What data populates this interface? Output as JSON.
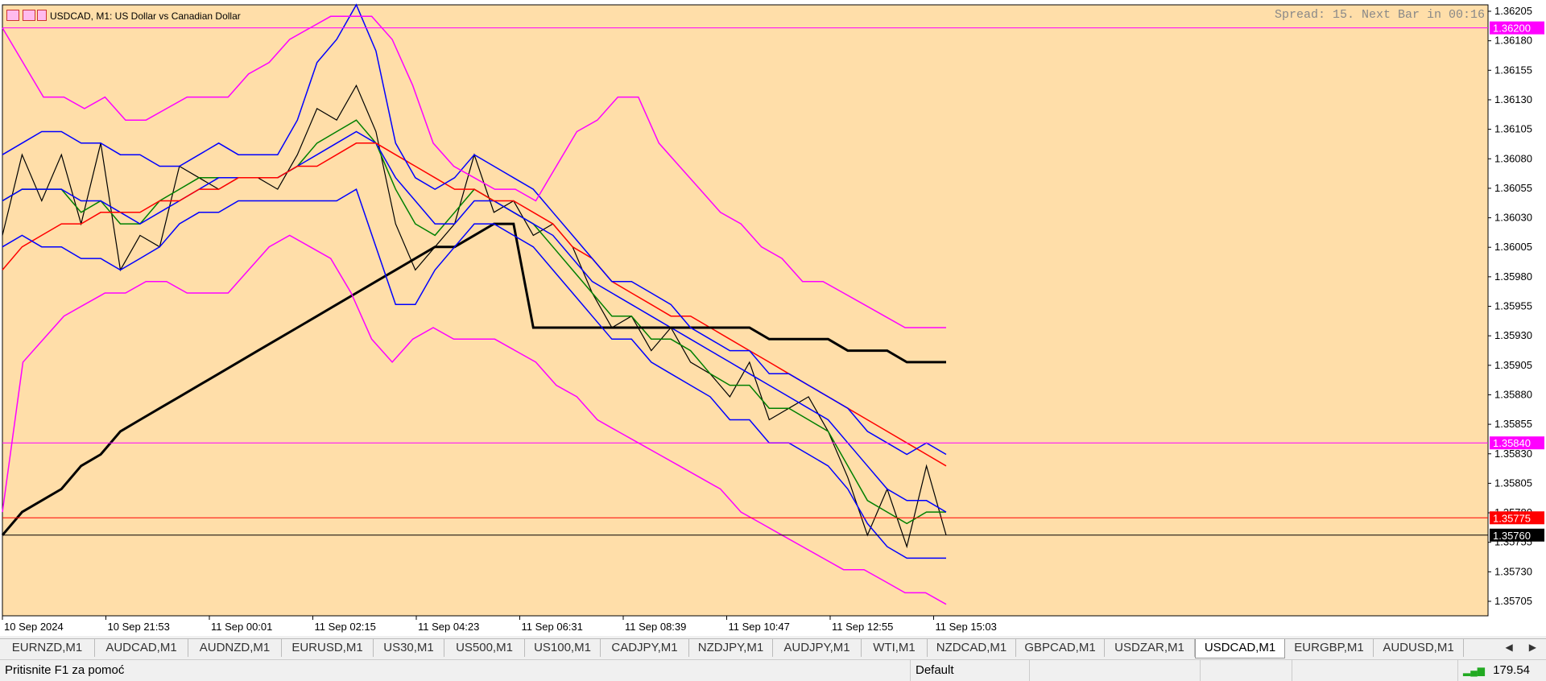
{
  "chart": {
    "title": "USDCAD, M1:  US Dollar vs Canadian Dollar",
    "spread_info": "Spread: 15. Next Bar in 00:16",
    "background": "#ffdea9",
    "y_ticks": [
      "1.36205",
      "1.36180",
      "1.36155",
      "1.36130",
      "1.36105",
      "1.36080",
      "1.36055",
      "1.36030",
      "1.36005",
      "1.35980",
      "1.35955",
      "1.35930",
      "1.35905",
      "1.35880",
      "1.35855",
      "1.35830",
      "1.35805",
      "1.35780",
      "1.35755",
      "1.35730",
      "1.35705"
    ],
    "x_ticks": [
      "10 Sep 2024",
      "10 Sep 21:53",
      "11 Sep 00:01",
      "11 Sep 02:15",
      "11 Sep 04:23",
      "11 Sep 06:31",
      "11 Sep 08:39",
      "11 Sep 10:47",
      "11 Sep 12:55",
      "11 Sep 15:03"
    ],
    "price_markers": [
      {
        "label": "1.36200",
        "value": 1.362,
        "color": "#ff00ff"
      },
      {
        "label": "1.35840",
        "value": 1.3584,
        "color": "#ff00ff"
      },
      {
        "label": "1.35775",
        "value": 1.35775,
        "color": "#ff0000"
      },
      {
        "label": "1.35760",
        "value": 1.3576,
        "color": "#000000"
      }
    ]
  },
  "chart_data": {
    "type": "line",
    "ylim": [
      1.3569,
      1.3622
    ],
    "series": [
      {
        "color": "#000000",
        "role": "price",
        "values": [
          1.3602,
          1.3609,
          1.3605,
          1.3609,
          1.3603,
          1.361,
          1.3599,
          1.3602,
          1.3601,
          1.3608,
          1.3607,
          1.3606,
          1.3607,
          1.3607,
          1.3606,
          1.3609,
          1.3613,
          1.3612,
          1.3615,
          1.3611,
          1.3603,
          1.3599,
          1.3601,
          1.3603,
          1.3609,
          1.3604,
          1.3605,
          1.3602,
          1.3603,
          1.3601,
          1.3597,
          1.3594,
          1.3595,
          1.3592,
          1.3594,
          1.3591,
          1.359,
          1.3588,
          1.3591,
          1.3586,
          1.3587,
          1.3588,
          1.3585,
          1.3581,
          1.3576,
          1.358,
          1.3575,
          1.3582,
          1.3576
        ]
      },
      {
        "color": "#008000",
        "role": "ma-fast",
        "values": [
          1.3605,
          1.3606,
          1.3606,
          1.3606,
          1.3604,
          1.3605,
          1.3603,
          1.3603,
          1.3605,
          1.3606,
          1.3607,
          1.3607,
          1.3607,
          1.3607,
          1.3607,
          1.3608,
          1.361,
          1.3611,
          1.3612,
          1.361,
          1.3606,
          1.3603,
          1.3602,
          1.3604,
          1.3606,
          1.3605,
          1.3604,
          1.3603,
          1.3601,
          1.3599,
          1.3597,
          1.3595,
          1.3595,
          1.3593,
          1.3593,
          1.3592,
          1.359,
          1.3589,
          1.3589,
          1.3587,
          1.3587,
          1.3586,
          1.3585,
          1.3582,
          1.3579,
          1.3578,
          1.3577,
          1.3578,
          1.3578
        ]
      },
      {
        "color": "#0000ff",
        "role": "ma-mid",
        "values": [
          1.3605,
          1.3606,
          1.3606,
          1.3606,
          1.3605,
          1.3605,
          1.3604,
          1.3603,
          1.3604,
          1.3605,
          1.3606,
          1.3607,
          1.3607,
          1.3607,
          1.3607,
          1.3608,
          1.3609,
          1.361,
          1.3611,
          1.361,
          1.3607,
          1.3605,
          1.3603,
          1.3603,
          1.3605,
          1.3605,
          1.3604,
          1.3603,
          1.3602,
          1.36,
          1.3598,
          1.3597,
          1.3596,
          1.3595,
          1.3594,
          1.3593,
          1.3592,
          1.3591,
          1.359,
          1.3589,
          1.3588,
          1.3587,
          1.3586,
          1.3584,
          1.3582,
          1.358,
          1.3579,
          1.3579,
          1.3578
        ]
      },
      {
        "color": "#ff0000",
        "role": "ma-slow",
        "values": [
          1.3599,
          1.3601,
          1.3602,
          1.3603,
          1.3603,
          1.3604,
          1.3604,
          1.3604,
          1.3605,
          1.3605,
          1.3606,
          1.3606,
          1.3607,
          1.3607,
          1.3607,
          1.3608,
          1.3608,
          1.3609,
          1.361,
          1.361,
          1.3609,
          1.3608,
          1.3607,
          1.3606,
          1.3606,
          1.3605,
          1.3605,
          1.3604,
          1.3603,
          1.3601,
          1.36,
          1.3598,
          1.3597,
          1.3596,
          1.3595,
          1.3595,
          1.3594,
          1.3593,
          1.3592,
          1.3591,
          1.359,
          1.3589,
          1.3588,
          1.3587,
          1.3586,
          1.3585,
          1.3584,
          1.3583,
          1.3582
        ]
      },
      {
        "color": "#000000",
        "role": "ma-long",
        "width": 3,
        "values": [
          1.3576,
          1.3578,
          1.3579,
          1.358,
          1.3582,
          1.3583,
          1.3585,
          1.3586,
          1.3587,
          1.3588,
          1.3589,
          1.359,
          1.3591,
          1.3592,
          1.3593,
          1.3594,
          1.3595,
          1.3596,
          1.3597,
          1.3598,
          1.3599,
          1.36,
          1.3601,
          1.3601,
          1.3602,
          1.3603,
          1.3603,
          1.3594,
          1.3594,
          1.3594,
          1.3594,
          1.3594,
          1.3594,
          1.3594,
          1.3594,
          1.3594,
          1.3594,
          1.3594,
          1.3594,
          1.3593,
          1.3593,
          1.3593,
          1.3593,
          1.3592,
          1.3592,
          1.3592,
          1.3591,
          1.3591,
          1.3591
        ]
      },
      {
        "color": "#0000ff",
        "role": "band-inner-upper",
        "values": [
          1.3609,
          1.361,
          1.3611,
          1.3611,
          1.361,
          1.361,
          1.3609,
          1.3609,
          1.3608,
          1.3608,
          1.3609,
          1.361,
          1.3609,
          1.3609,
          1.3609,
          1.3612,
          1.3617,
          1.3619,
          1.3622,
          1.3618,
          1.361,
          1.3607,
          1.3606,
          1.3607,
          1.3609,
          1.3608,
          1.3607,
          1.3606,
          1.3604,
          1.3602,
          1.36,
          1.3598,
          1.3598,
          1.3597,
          1.3596,
          1.3594,
          1.3593,
          1.3592,
          1.3592,
          1.359,
          1.359,
          1.3589,
          1.3588,
          1.3587,
          1.3585,
          1.3584,
          1.3583,
          1.3584,
          1.3583
        ]
      },
      {
        "color": "#0000ff",
        "role": "band-inner-lower",
        "values": [
          1.3601,
          1.3602,
          1.3601,
          1.3601,
          1.36,
          1.36,
          1.3599,
          1.36,
          1.3601,
          1.3603,
          1.3604,
          1.3604,
          1.3605,
          1.3605,
          1.3605,
          1.3605,
          1.3605,
          1.3605,
          1.3606,
          1.3601,
          1.3596,
          1.3596,
          1.3599,
          1.3601,
          1.3603,
          1.3603,
          1.3602,
          1.3601,
          1.3599,
          1.3597,
          1.3595,
          1.3593,
          1.3593,
          1.3591,
          1.359,
          1.3589,
          1.3588,
          1.3586,
          1.3586,
          1.3584,
          1.3584,
          1.3583,
          1.3582,
          1.358,
          1.3577,
          1.3575,
          1.3574,
          1.3574,
          1.3574
        ]
      },
      {
        "color": "#ff00ff",
        "role": "band-outer-upper",
        "values": [
          1.362,
          1.3617,
          1.3614,
          1.3614,
          1.3613,
          1.3614,
          1.3612,
          1.3612,
          1.3613,
          1.3614,
          1.3614,
          1.3614,
          1.3616,
          1.3617,
          1.3619,
          1.362,
          1.3621,
          1.3621,
          1.3621,
          1.3619,
          1.3615,
          1.361,
          1.3608,
          1.3607,
          1.3606,
          1.3606,
          1.3605,
          1.3608,
          1.3611,
          1.3612,
          1.3614,
          1.3614,
          1.361,
          1.3608,
          1.3606,
          1.3604,
          1.3603,
          1.3601,
          1.36,
          1.3598,
          1.3598,
          1.3597,
          1.3596,
          1.3595,
          1.3594,
          1.3594,
          1.3594
        ]
      },
      {
        "color": "#ff00ff",
        "role": "band-outer-lower",
        "values": [
          1.3578,
          1.3591,
          1.3593,
          1.3595,
          1.3596,
          1.3597,
          1.3597,
          1.3598,
          1.3598,
          1.3597,
          1.3597,
          1.3597,
          1.3599,
          1.3601,
          1.3602,
          1.3601,
          1.36,
          1.3597,
          1.3593,
          1.3591,
          1.3593,
          1.3594,
          1.3593,
          1.3593,
          1.3593,
          1.3592,
          1.3591,
          1.3589,
          1.3588,
          1.3586,
          1.3585,
          1.3584,
          1.3583,
          1.3582,
          1.3581,
          1.358,
          1.3578,
          1.3577,
          1.3576,
          1.3575,
          1.3574,
          1.3573,
          1.3573,
          1.3572,
          1.3571,
          1.3571,
          1.357
        ]
      }
    ]
  },
  "tabs": [
    {
      "label": "EURNZD,M1"
    },
    {
      "label": "AUDCAD,M1"
    },
    {
      "label": "AUDNZD,M1"
    },
    {
      "label": "EURUSD,M1"
    },
    {
      "label": "US30,M1"
    },
    {
      "label": "US500,M1"
    },
    {
      "label": "US100,M1"
    },
    {
      "label": "CADJPY,M1"
    },
    {
      "label": "NZDJPY,M1"
    },
    {
      "label": "AUDJPY,M1"
    },
    {
      "label": "WTI,M1"
    },
    {
      "label": "NZDCAD,M1"
    },
    {
      "label": "GBPCAD,M1"
    },
    {
      "label": "USDZAR,M1"
    },
    {
      "label": "USDCAD,M1",
      "active": true
    },
    {
      "label": "EURGBP,M1"
    },
    {
      "label": "AUDUSD,M1"
    }
  ],
  "tab_nav": {
    "left": "◀",
    "right": "▶"
  },
  "status": {
    "help": "Pritisnite F1 za pomoć",
    "profile": "Default",
    "connection": "179.54"
  }
}
